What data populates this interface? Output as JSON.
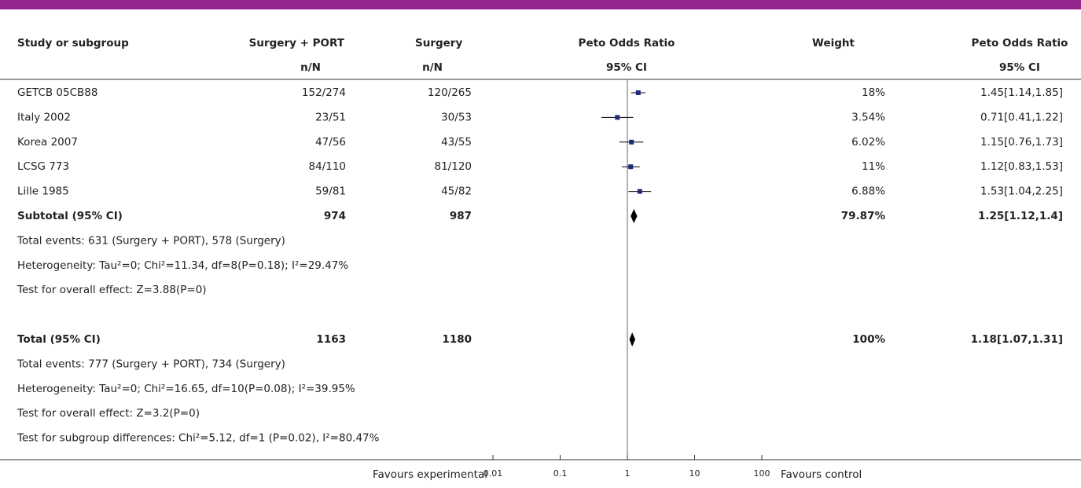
{
  "chart_data": {
    "type": "forest",
    "columns": [
      "Study or subgroup",
      "Surgery + PORT",
      "Surgery",
      "Peto Odds Ratio",
      "Weight",
      "Peto Odds Ratio"
    ],
    "subheaders": [
      "n/N",
      "n/N",
      "95% CI",
      "95% CI"
    ],
    "studies": [
      {
        "name": "GETCB 05CB88",
        "experimental": "152/274",
        "control": "120/265",
        "weight": "18%",
        "or": 1.45,
        "ci": [
          1.14,
          1.85
        ],
        "or_label": "1.45[1.14,1.85]"
      },
      {
        "name": "Italy 2002",
        "experimental": "23/51",
        "control": "30/53",
        "weight": "3.54%",
        "or": 0.71,
        "ci": [
          0.41,
          1.22
        ],
        "or_label": "0.71[0.41,1.22]"
      },
      {
        "name": "Korea 2007",
        "experimental": "47/56",
        "control": "43/55",
        "weight": "6.02%",
        "or": 1.15,
        "ci": [
          0.76,
          1.73
        ],
        "or_label": "1.15[0.76,1.73]"
      },
      {
        "name": "LCSG 773",
        "experimental": "84/110",
        "control": "81/120",
        "weight": "11%",
        "or": 1.12,
        "ci": [
          0.83,
          1.53
        ],
        "or_label": "1.12[0.83,1.53]"
      },
      {
        "name": "Lille 1985",
        "experimental": "59/81",
        "control": "45/82",
        "weight": "6.88%",
        "or": 1.53,
        "ci": [
          1.04,
          2.25
        ],
        "or_label": "1.53[1.04,2.25]"
      }
    ],
    "subtotal": {
      "name": "Subtotal (95% CI)",
      "experimental": "974",
      "control": "987",
      "weight": "79.87%",
      "or": 1.25,
      "ci": [
        1.12,
        1.4
      ],
      "or_label": "1.25[1.12,1.4]",
      "notes": [
        "Total events: 631 (Surgery + PORT), 578 (Surgery)",
        "Heterogeneity: Tau²=0; Chi²=11.34, df=8(P=0.18); I²=29.47%",
        "Test for overall effect: Z=3.88(P=0)"
      ]
    },
    "total": {
      "name": "Total (95% CI)",
      "experimental": "1163",
      "control": "1180",
      "weight": "100%",
      "or": 1.18,
      "ci": [
        1.07,
        1.31
      ],
      "or_label": "1.18[1.07,1.31]",
      "notes": [
        "Total events: 777 (Surgery + PORT), 734 (Surgery)",
        "Heterogeneity: Tau²=0; Chi²=16.65, df=10(P=0.08); I²=39.95%",
        "Test for overall effect: Z=3.2(P=0)",
        "Test for subgroup differences: Chi²=5.12, df=1 (P=0.02), I²=80.47%"
      ]
    },
    "xlim": [
      0.01,
      100
    ],
    "xticks": [
      0.01,
      0.1,
      1,
      10,
      100
    ],
    "log_x": true,
    "xlabel_left": "Favours experimental",
    "xlabel_right": "Favours control",
    "color": "#1f2a7a"
  }
}
